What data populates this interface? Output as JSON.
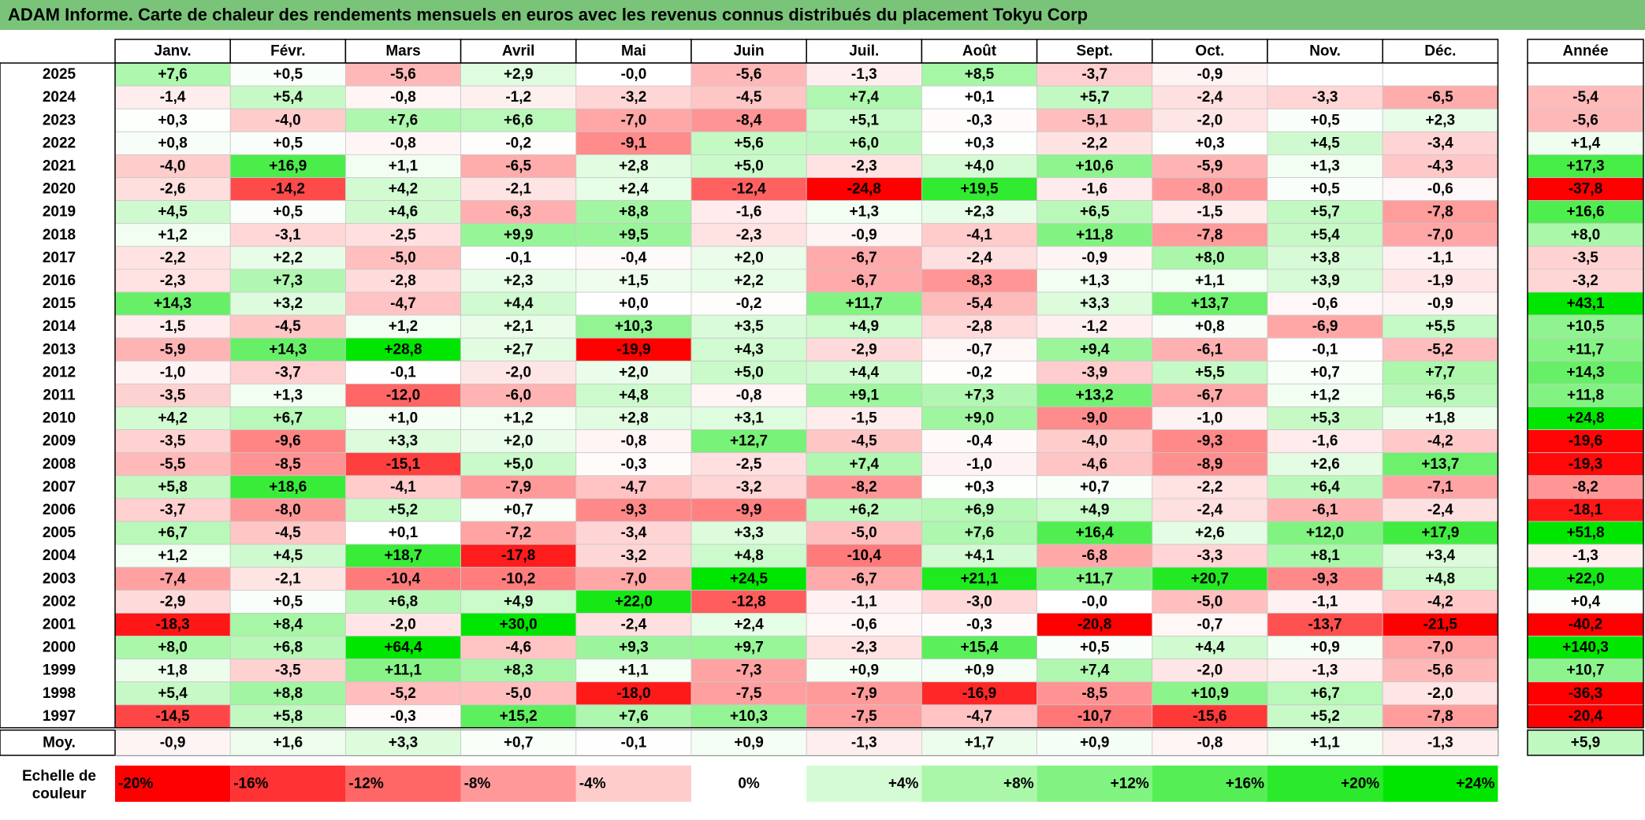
{
  "title": "ADAM Informe. Carte de chaleur des rendements mensuels en euros avec les revenus connus distribués du placement Tokyu Corp",
  "chart_data": {
    "type": "heatmap",
    "months": [
      "Janv.",
      "Févr.",
      "Mars",
      "Avril",
      "Mai",
      "Juin",
      "Juil.",
      "Août",
      "Sept.",
      "Oct.",
      "Nov.",
      "Déc."
    ],
    "annual_label": "Année",
    "rows": [
      {
        "year": "2025",
        "values": [
          "+7,6",
          "+0,5",
          "-5,6",
          "+2,9",
          "-0,0",
          "-5,6",
          "-1,3",
          "+8,5",
          "-3,7",
          "-0,9",
          "",
          ""
        ],
        "annual": ""
      },
      {
        "year": "2024",
        "values": [
          "-1,4",
          "+5,4",
          "-0,8",
          "-1,2",
          "-3,2",
          "-4,5",
          "+7,4",
          "+0,1",
          "+5,7",
          "-2,4",
          "-3,3",
          "-6,5"
        ],
        "annual": "-5,4"
      },
      {
        "year": "2023",
        "values": [
          "+0,3",
          "-4,0",
          "+7,6",
          "+6,6",
          "-7,0",
          "-8,4",
          "+5,1",
          "-0,3",
          "-5,1",
          "-2,0",
          "+0,5",
          "+2,3"
        ],
        "annual": "-5,6"
      },
      {
        "year": "2022",
        "values": [
          "+0,8",
          "+0,5",
          "-0,8",
          "-0,2",
          "-9,1",
          "+5,6",
          "+6,0",
          "+0,3",
          "-2,2",
          "+0,3",
          "+4,5",
          "-3,4"
        ],
        "annual": "+1,4"
      },
      {
        "year": "2021",
        "values": [
          "-4,0",
          "+16,9",
          "+1,1",
          "-6,5",
          "+2,8",
          "+5,0",
          "-2,3",
          "+4,0",
          "+10,6",
          "-5,9",
          "+1,3",
          "-4,3"
        ],
        "annual": "+17,3"
      },
      {
        "year": "2020",
        "values": [
          "-2,6",
          "-14,2",
          "+4,2",
          "-2,1",
          "+2,4",
          "-12,4",
          "-24,8",
          "+19,5",
          "-1,6",
          "-8,0",
          "+0,5",
          "-0,6"
        ],
        "annual": "-37,8"
      },
      {
        "year": "2019",
        "values": [
          "+4,5",
          "+0,5",
          "+4,6",
          "-6,3",
          "+8,8",
          "-1,6",
          "+1,3",
          "+2,3",
          "+6,5",
          "-1,5",
          "+5,7",
          "-7,8"
        ],
        "annual": "+16,6"
      },
      {
        "year": "2018",
        "values": [
          "+1,2",
          "-3,1",
          "-2,5",
          "+9,9",
          "+9,5",
          "-2,3",
          "-0,9",
          "-4,1",
          "+11,8",
          "-7,8",
          "+5,4",
          "-7,0"
        ],
        "annual": "+8,0"
      },
      {
        "year": "2017",
        "values": [
          "-2,2",
          "+2,2",
          "-5,0",
          "-0,1",
          "-0,4",
          "+2,0",
          "-6,7",
          "-2,4",
          "-0,9",
          "+8,0",
          "+3,8",
          "-1,1"
        ],
        "annual": "-3,5"
      },
      {
        "year": "2016",
        "values": [
          "-2,3",
          "+7,3",
          "-2,8",
          "+2,3",
          "+1,5",
          "+2,2",
          "-6,7",
          "-8,3",
          "+1,3",
          "+1,1",
          "+3,9",
          "-1,9"
        ],
        "annual": "-3,2"
      },
      {
        "year": "2015",
        "values": [
          "+14,3",
          "+3,2",
          "-4,7",
          "+4,4",
          "+0,0",
          "-0,2",
          "+11,7",
          "-5,4",
          "+3,3",
          "+13,7",
          "-0,6",
          "-0,9"
        ],
        "annual": "+43,1"
      },
      {
        "year": "2014",
        "values": [
          "-1,5",
          "-4,5",
          "+1,2",
          "+2,1",
          "+10,3",
          "+3,5",
          "+4,9",
          "-2,8",
          "-1,2",
          "+0,8",
          "-6,9",
          "+5,5"
        ],
        "annual": "+10,5"
      },
      {
        "year": "2013",
        "values": [
          "-5,9",
          "+14,3",
          "+28,8",
          "+2,7",
          "-19,9",
          "+4,3",
          "-2,9",
          "-0,7",
          "+9,4",
          "-6,1",
          "-0,1",
          "-5,2"
        ],
        "annual": "+11,7"
      },
      {
        "year": "2012",
        "values": [
          "-1,0",
          "-3,7",
          "-0,1",
          "-2,0",
          "+2,0",
          "+5,0",
          "+4,4",
          "-0,2",
          "-3,9",
          "+5,5",
          "+0,7",
          "+7,7"
        ],
        "annual": "+14,3"
      },
      {
        "year": "2011",
        "values": [
          "-3,5",
          "+1,3",
          "-12,0",
          "-6,0",
          "+4,8",
          "-0,8",
          "+9,1",
          "+7,3",
          "+13,2",
          "-6,7",
          "+1,2",
          "+6,5"
        ],
        "annual": "+11,8"
      },
      {
        "year": "2010",
        "values": [
          "+4,2",
          "+6,7",
          "+1,0",
          "+1,2",
          "+2,8",
          "+3,1",
          "-1,5",
          "+9,0",
          "-9,0",
          "-1,0",
          "+5,3",
          "+1,8"
        ],
        "annual": "+24,8"
      },
      {
        "year": "2009",
        "values": [
          "-3,5",
          "-9,6",
          "+3,3",
          "+2,0",
          "-0,8",
          "+12,7",
          "-4,5",
          "-0,4",
          "-4,0",
          "-9,3",
          "-1,6",
          "-4,2"
        ],
        "annual": "-19,6"
      },
      {
        "year": "2008",
        "values": [
          "-5,5",
          "-8,5",
          "-15,1",
          "+5,0",
          "-0,3",
          "-2,5",
          "+7,4",
          "-1,0",
          "-4,6",
          "-8,9",
          "+2,6",
          "+13,7"
        ],
        "annual": "-19,3"
      },
      {
        "year": "2007",
        "values": [
          "+5,8",
          "+18,6",
          "-4,1",
          "-7,9",
          "-4,7",
          "-3,2",
          "-8,2",
          "+0,3",
          "+0,7",
          "-2,2",
          "+6,4",
          "-7,1"
        ],
        "annual": "-8,2"
      },
      {
        "year": "2006",
        "values": [
          "-3,7",
          "-8,0",
          "+5,2",
          "+0,7",
          "-9,3",
          "-9,9",
          "+6,2",
          "+6,9",
          "+4,9",
          "-2,4",
          "-6,1",
          "-2,4"
        ],
        "annual": "-18,1"
      },
      {
        "year": "2005",
        "values": [
          "+6,7",
          "-4,5",
          "+0,1",
          "-7,2",
          "-3,4",
          "+3,3",
          "-5,0",
          "+7,6",
          "+16,4",
          "+2,6",
          "+12,0",
          "+17,9"
        ],
        "annual": "+51,8"
      },
      {
        "year": "2004",
        "values": [
          "+1,2",
          "+4,5",
          "+18,7",
          "-17,8",
          "-3,2",
          "+4,8",
          "-10,4",
          "+4,1",
          "-6,8",
          "-3,3",
          "+8,1",
          "+3,4"
        ],
        "annual": "-1,3"
      },
      {
        "year": "2003",
        "values": [
          "-7,4",
          "-2,1",
          "-10,4",
          "-10,2",
          "-7,0",
          "+24,5",
          "-6,7",
          "+21,1",
          "+11,7",
          "+20,7",
          "-9,3",
          "+4,8"
        ],
        "annual": "+22,0"
      },
      {
        "year": "2002",
        "values": [
          "-2,9",
          "+0,5",
          "+6,8",
          "+4,9",
          "+22,0",
          "-12,8",
          "-1,1",
          "-3,0",
          "-0,0",
          "-5,0",
          "-1,1",
          "-4,2"
        ],
        "annual": "+0,4"
      },
      {
        "year": "2001",
        "values": [
          "-18,3",
          "+8,4",
          "-2,0",
          "+30,0",
          "-2,4",
          "+2,4",
          "-0,6",
          "-0,3",
          "-20,8",
          "-0,7",
          "-13,7",
          "-21,5"
        ],
        "annual": "-40,2"
      },
      {
        "year": "2000",
        "values": [
          "+8,0",
          "+6,8",
          "+64,4",
          "-4,6",
          "+9,3",
          "+9,7",
          "-2,3",
          "+15,4",
          "+0,5",
          "+4,4",
          "+0,9",
          "-7,0"
        ],
        "annual": "+140,3"
      },
      {
        "year": "1999",
        "values": [
          "+1,8",
          "-3,5",
          "+11,1",
          "+8,3",
          "+1,1",
          "-7,3",
          "+0,9",
          "+0,9",
          "+7,4",
          "-2,0",
          "-1,3",
          "-5,6"
        ],
        "annual": "+10,7"
      },
      {
        "year": "1998",
        "values": [
          "+5,4",
          "+8,8",
          "-5,2",
          "-5,0",
          "-18,0",
          "-7,5",
          "-7,9",
          "-16,9",
          "-8,5",
          "+10,9",
          "+6,7",
          "-2,0"
        ],
        "annual": "-36,3"
      },
      {
        "year": "1997",
        "values": [
          "-14,5",
          "+5,8",
          "-0,3",
          "+15,2",
          "+7,6",
          "+10,3",
          "-7,5",
          "-4,7",
          "-10,7",
          "-15,6",
          "+5,2",
          "-7,8"
        ],
        "annual": "-20,4"
      }
    ],
    "average_row": {
      "label": "Moy.",
      "values": [
        "-0,9",
        "+1,6",
        "+3,3",
        "+0,7",
        "-0,1",
        "+0,9",
        "-1,3",
        "+1,7",
        "+0,9",
        "-0,8",
        "+1,1",
        "-1,3"
      ],
      "annual": "+5,9"
    },
    "scale": {
      "label_line1": "Echelle de",
      "label_line2": "couleur",
      "steps": [
        {
          "label": "-20%",
          "value": -20
        },
        {
          "label": "-16%",
          "value": -16
        },
        {
          "label": "-12%",
          "value": -12
        },
        {
          "label": "-8%",
          "value": -8
        },
        {
          "label": "-4%",
          "value": -4
        },
        {
          "label": "0%",
          "value": 0
        },
        {
          "label": "+4%",
          "value": 4
        },
        {
          "label": "+8%",
          "value": 8
        },
        {
          "label": "+12%",
          "value": 12
        },
        {
          "label": "+16%",
          "value": 16
        },
        {
          "label": "+20%",
          "value": 20
        },
        {
          "label": "+24%",
          "value": 24
        }
      ]
    },
    "colors": {
      "negative_max": "#ff0000",
      "neutral": "#ffffff",
      "positive_max": "#00e600",
      "title_bar": "#7ac47a"
    }
  }
}
